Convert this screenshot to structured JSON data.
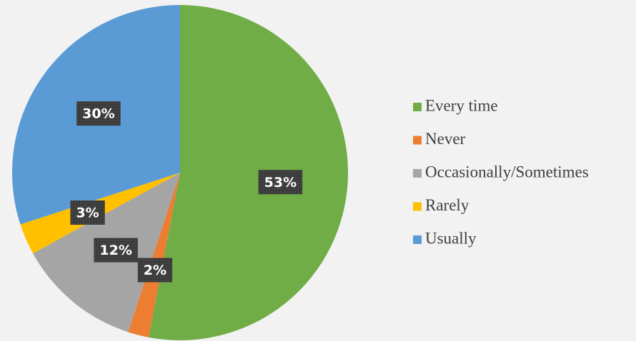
{
  "chart_data": {
    "type": "pie",
    "categories": [
      "Every time",
      "Never",
      "Occasionally/Sometimes",
      "Rarely",
      "Usually"
    ],
    "values": [
      53,
      2,
      12,
      3,
      30
    ],
    "value_labels": [
      "53%",
      "2%",
      "12%",
      "3%",
      "30%"
    ],
    "colors": [
      "#70ad47",
      "#ed7d31",
      "#a5a5a5",
      "#ffc000",
      "#5b9bd5"
    ],
    "legend": "right"
  }
}
